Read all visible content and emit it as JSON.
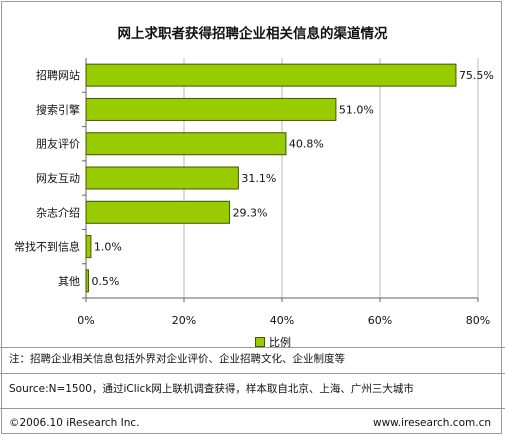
{
  "chart_data": {
    "type": "bar",
    "orientation": "horizontal",
    "title": "网上求职者获得招聘企业相关信息的渠道情况",
    "categories": [
      "招聘网站",
      "搜索引擎",
      "朋友评价",
      "网友互动",
      "杂志介绍",
      "常找不到信息",
      "其他"
    ],
    "series": [
      {
        "name": "比例",
        "values": [
          75.5,
          51.0,
          40.8,
          31.1,
          29.3,
          1.0,
          0.5
        ],
        "labels": [
          "75.5%",
          "51.0%",
          "40.8%",
          "31.1%",
          "29.3%",
          "1.0%",
          "0.5%"
        ]
      }
    ],
    "xlim": [
      0,
      80
    ],
    "xticks": [
      "0%",
      "20%",
      "40%",
      "60%",
      "80%"
    ],
    "grid": true,
    "legend": "bottom-center",
    "bar_color": "#99cc00",
    "bar_edge_color": "#445500"
  },
  "note": "注：招聘企业相关信息包括外界对企业评价、企业招聘文化、企业制度等",
  "source": "Source:N=1500，通过iClick网上联机调查获得，样本取自北京、上海、广州三大城市",
  "footer": {
    "copyright": "©2006.10 iResearch Inc.",
    "website": "www.iresearch.com.cn"
  }
}
